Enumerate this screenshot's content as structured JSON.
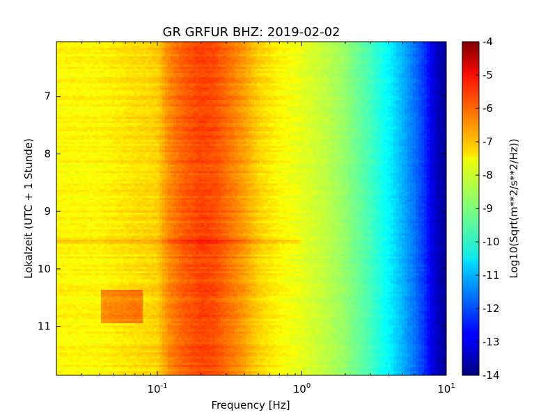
{
  "chart_data": {
    "type": "heatmap",
    "title": "GR GRFUR BHZ: 2019-02-02",
    "xlabel": "Frequency [Hz]",
    "ylabel": "Lokalzeit (UTC + 1 Stunde)",
    "x_scale": "log",
    "xlim": [
      0.02,
      10
    ],
    "x_ticks": [
      {
        "value": 0.1,
        "base": "10",
        "exp": "-1"
      },
      {
        "value": 1,
        "base": "10",
        "exp": "0"
      },
      {
        "value": 10,
        "base": "10",
        "exp": "1"
      }
    ],
    "ylim": [
      6.05,
      11.85
    ],
    "y_inverted": true,
    "y_ticks": [
      "7",
      "8",
      "9",
      "10",
      "11"
    ],
    "colorbar": {
      "label": "Log10(Sqrt(m**2/s**2/Hz))",
      "colormap": "jet",
      "range": [
        -14,
        -4
      ],
      "ticks": [
        "-4",
        "-5",
        "-6",
        "-7",
        "-8",
        "-9",
        "-10",
        "-11",
        "-12",
        "-13",
        "-14"
      ]
    },
    "spectrum_profile": {
      "frequency": [
        0.02,
        0.04,
        0.06,
        0.08,
        0.1,
        0.12,
        0.15,
        0.2,
        0.25,
        0.3,
        0.4,
        0.5,
        0.7,
        1.0,
        1.5,
        2.0,
        3.0,
        4.0,
        5.0,
        6.0,
        7.0,
        8.0,
        9.0,
        10.0
      ],
      "value": [
        -7.7,
        -7.7,
        -7.5,
        -7.4,
        -7.3,
        -6.6,
        -6.2,
        -5.9,
        -6.0,
        -6.3,
        -6.8,
        -7.3,
        -7.7,
        -8.0,
        -8.4,
        -8.8,
        -9.6,
        -10.3,
        -11.0,
        -11.6,
        -12.2,
        -13.0,
        -13.5,
        -13.7
      ]
    },
    "anomalies": [
      {
        "time_range": [
          10.35,
          10.95
        ],
        "freq_range": [
          0.04,
          0.08
        ],
        "offset": 1.0
      },
      {
        "time_range": [
          9.5,
          9.55
        ],
        "freq_range": [
          0.02,
          1.0
        ],
        "offset": 0.5
      }
    ]
  }
}
